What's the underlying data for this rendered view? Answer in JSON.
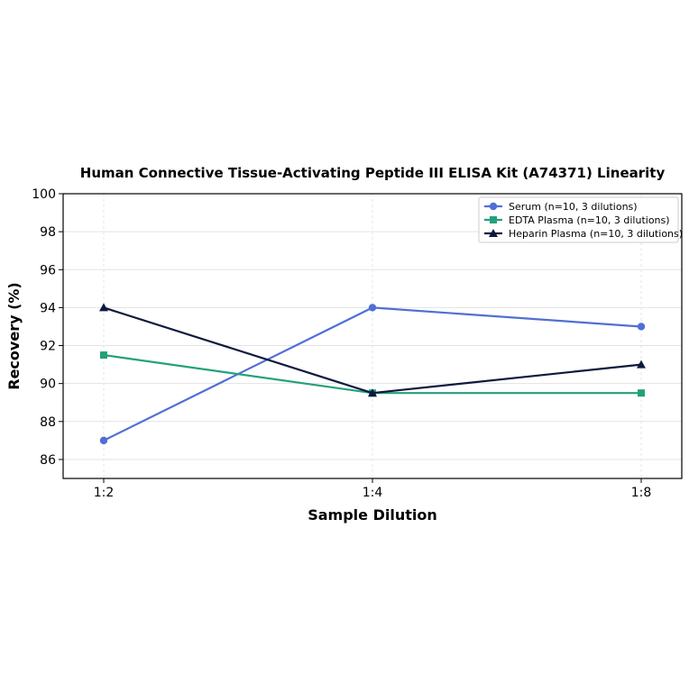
{
  "chart_data": {
    "type": "line",
    "title": "Human Connective Tissue-Activating Peptide III ELISA Kit (A74371) Linearity",
    "xlabel": "Sample Dilution",
    "ylabel": "Recovery (%)",
    "categories": [
      "1:2",
      "1:4",
      "1:8"
    ],
    "ylim": [
      85,
      100
    ],
    "yticks": [
      86,
      88,
      90,
      92,
      94,
      96,
      98,
      100
    ],
    "grid": true,
    "legend_position": "top-right",
    "series": [
      {
        "name": "Serum (n=10, 3 dilutions)",
        "values": [
          87.0,
          94.0,
          93.0
        ],
        "color": "#4f6fd6",
        "marker": "circle"
      },
      {
        "name": "EDTA Plasma (n=10, 3 dilutions)",
        "values": [
          91.5,
          89.5,
          89.5
        ],
        "color": "#23a07a",
        "marker": "square"
      },
      {
        "name": "Heparin Plasma (n=10, 3 dilutions)",
        "values": [
          94.0,
          89.5,
          91.0
        ],
        "color": "#0e1a3d",
        "marker": "triangle"
      }
    ]
  }
}
